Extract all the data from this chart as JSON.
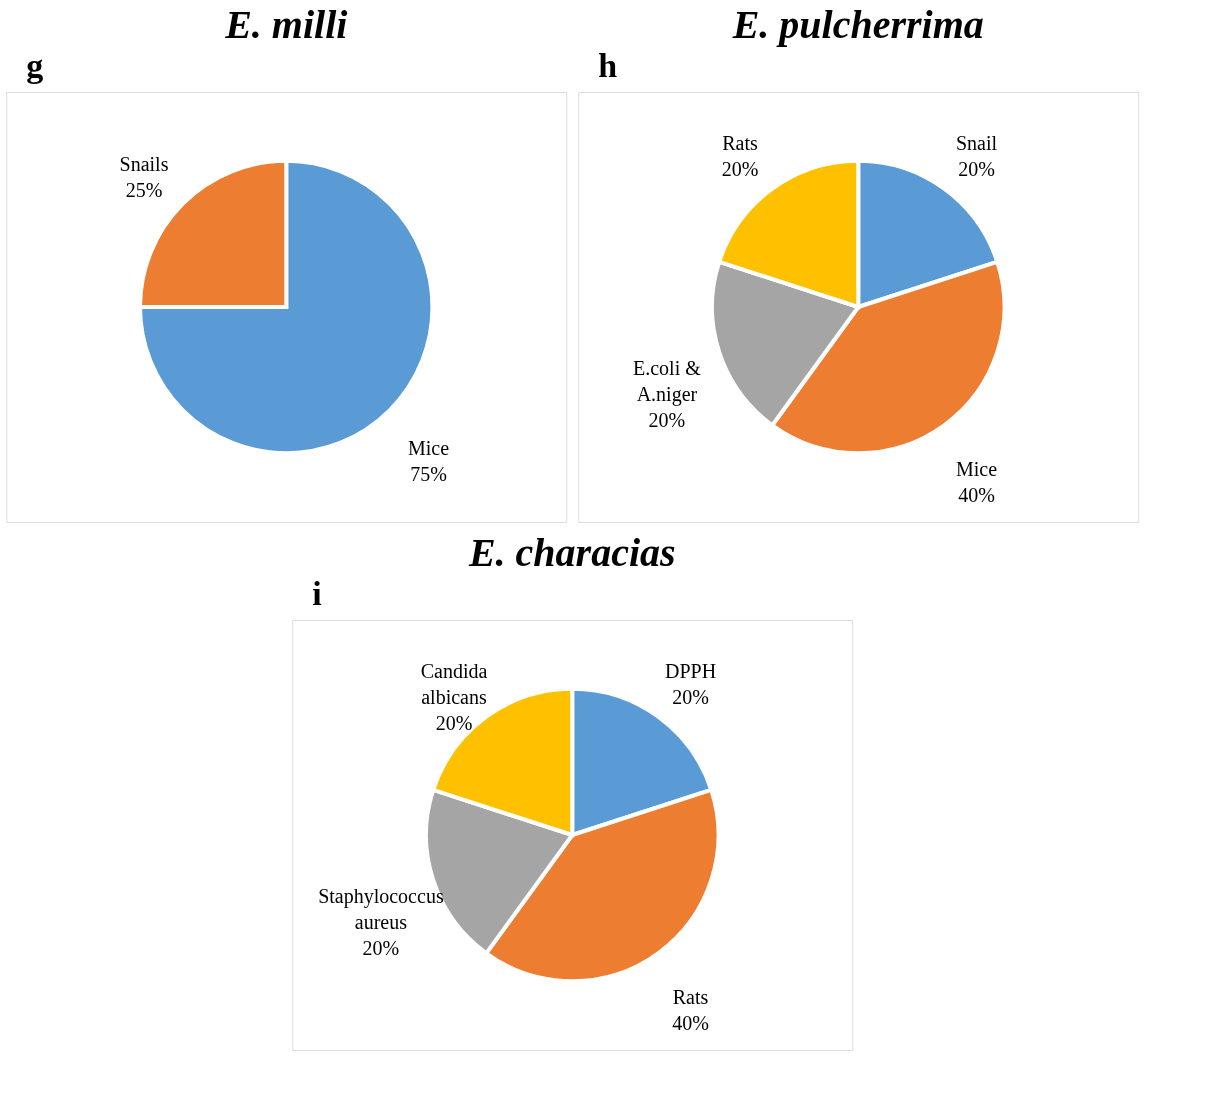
{
  "chart_data": [
    {
      "type": "pie",
      "title": "E. milli",
      "annotations": [
        "g"
      ],
      "categories": [
        "Mice",
        "Snails"
      ],
      "values": [
        75,
        25
      ],
      "value_labels": [
        "75%",
        "25%"
      ],
      "colors": [
        "#5b9bd5",
        "#ed7d31"
      ],
      "legend": false
    },
    {
      "type": "pie",
      "title": "E. pulcherrima",
      "annotations": [
        "h"
      ],
      "categories": [
        "Snail",
        "Mice",
        "E.coli & A.niger",
        "Rats"
      ],
      "values": [
        20,
        40,
        20,
        20
      ],
      "value_labels": [
        "20%",
        "40%",
        "20%",
        "20%"
      ],
      "colors": [
        "#5b9bd5",
        "#ed7d31",
        "#a5a5a5",
        "#ffc000"
      ],
      "legend": false
    },
    {
      "type": "pie",
      "title": "E. characias",
      "annotations": [
        "i"
      ],
      "categories": [
        "DPPH",
        "Rats",
        "Staphylococcus aureus",
        "Candida albicans"
      ],
      "values": [
        20,
        40,
        20,
        20
      ],
      "value_labels": [
        "20%",
        "40%",
        "20%",
        "20%"
      ],
      "colors": [
        "#5b9bd5",
        "#ed7d31",
        "#a5a5a5",
        "#ffc000"
      ],
      "legend": false
    }
  ]
}
